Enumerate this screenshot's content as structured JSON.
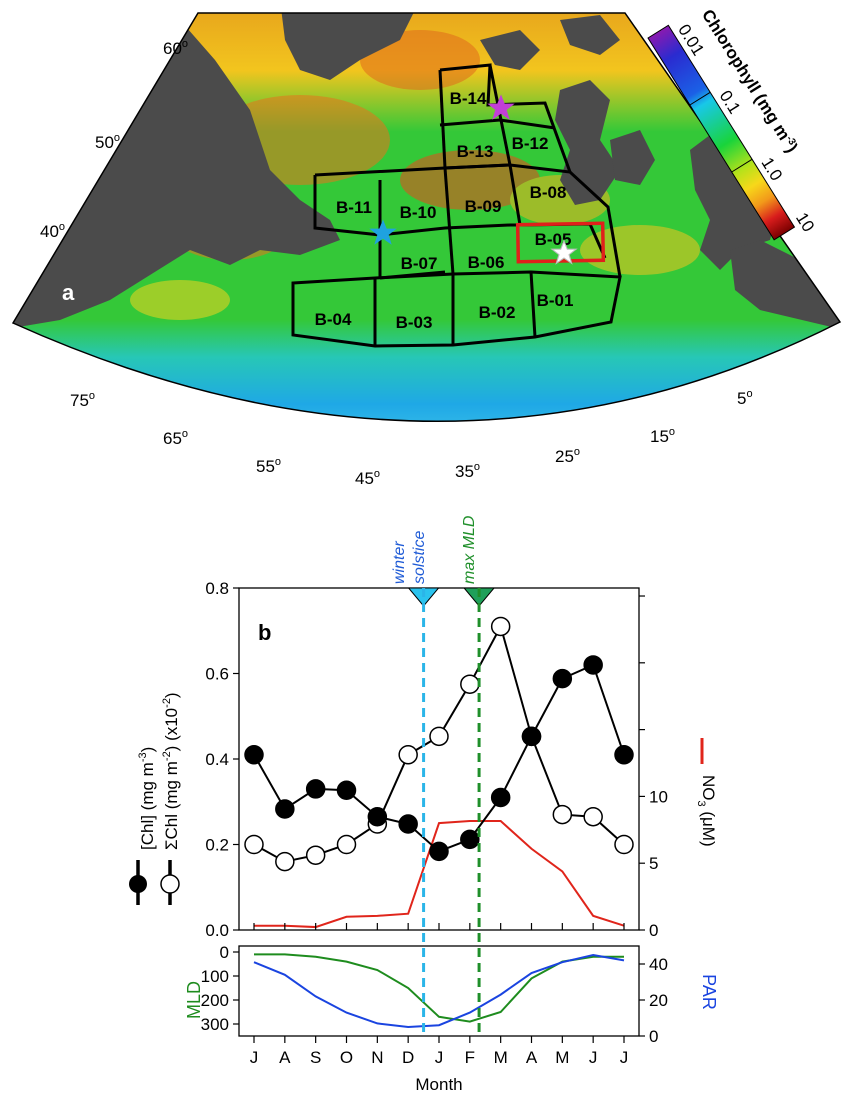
{
  "panel_a": {
    "label": "a",
    "colorbar": {
      "title": "Chlorophyll (mg m",
      "title_exp": "-3",
      "title_close": ")",
      "tick_labels": [
        "0.01",
        "0.1",
        "1.0",
        "10"
      ],
      "scale": "log",
      "colors": [
        "#8a1ab0",
        "#1b36d9",
        "#18c8e8",
        "#19d43b",
        "#f7e81a",
        "#f29a1a",
        "#d81c1c",
        "#7a0000"
      ]
    },
    "lat_labels": [
      {
        "deg": "60",
        "sup": "o"
      },
      {
        "deg": "50",
        "sup": "o"
      },
      {
        "deg": "40",
        "sup": "o"
      }
    ],
    "lon_labels": [
      {
        "deg": "75",
        "sup": "o"
      },
      {
        "deg": "65",
        "sup": "o"
      },
      {
        "deg": "55",
        "sup": "o"
      },
      {
        "deg": "45",
        "sup": "o"
      },
      {
        "deg": "35",
        "sup": "o"
      },
      {
        "deg": "25",
        "sup": "o"
      },
      {
        "deg": "15",
        "sup": "o"
      },
      {
        "deg": "5",
        "sup": "o"
      }
    ],
    "boxes": [
      "B-01",
      "B-02",
      "B-03",
      "B-04",
      "B-05",
      "B-06",
      "B-07",
      "B-08",
      "B-09",
      "B-10",
      "B-11",
      "B-12",
      "B-13",
      "B-14"
    ],
    "highlighted_box": "B-05",
    "markers": [
      {
        "name": "magenta-star",
        "color": "#c23fd6"
      },
      {
        "name": "cyan-star",
        "color": "#1fa2e0"
      },
      {
        "name": "white-star",
        "color": "#ffffff"
      }
    ],
    "colors": {
      "land": "#4b4b4b",
      "box_outline": "#000000",
      "highlight_outline": "#e0201b"
    }
  },
  "chart_data": {
    "type": "line",
    "panel_label": "b",
    "categories": [
      "J",
      "A",
      "S",
      "O",
      "N",
      "D",
      "J",
      "F",
      "M",
      "A",
      "M",
      "J",
      "J"
    ],
    "xlabel": "Month",
    "ylabel_left_line1": "[Chl] (mg m",
    "ylabel_left_line1_exp": "-3",
    "ylabel_left_line2": "ΣChl (mg m",
    "ylabel_left_line2_exp": "-2",
    "ylabel_left_line2_tail": ") (x10",
    "ylabel_left_line2_tail_exp": "-2",
    "ylim_left": [
      0,
      0.8
    ],
    "yticks_left": [
      "0.0",
      "0.2",
      "0.4",
      "0.6",
      "0.8"
    ],
    "ylabel_right": "NO",
    "ylabel_right_sub": "3",
    "ylabel_right_unit": " (μM)",
    "ylim_right": [
      0,
      25.6
    ],
    "yticks_right": [
      "0",
      "5",
      "10"
    ],
    "series": [
      {
        "key": "chl",
        "color": "#000000",
        "marker": "filled-circle",
        "values": [
          0.41,
          0.283,
          0.33,
          0.327,
          0.265,
          0.248,
          0.184,
          0.212,
          0.31,
          0.453,
          0.588,
          0.62,
          0.41
        ]
      },
      {
        "key": "sum_chl",
        "color": "#000000",
        "marker": "open-circle",
        "values": [
          0.2,
          0.16,
          0.175,
          0.2,
          0.248,
          0.41,
          0.453,
          0.575,
          0.71,
          0.453,
          0.27,
          0.265,
          0.2
        ]
      },
      {
        "key": "no3",
        "color": "#e0251b",
        "marker": "none",
        "axis": "right",
        "values": [
          0.32,
          0.32,
          0.22,
          0.99,
          1.06,
          1.22,
          8.0,
          8.16,
          8.16,
          6.08,
          4.38,
          1.06,
          0.32
        ]
      }
    ],
    "markers_top": [
      {
        "label_line1": "winter",
        "label_line2": "solstice",
        "color": "#1f5bd6",
        "line_color": "#2bb5e8",
        "x_month_index": 5.5
      },
      {
        "label_line1": "max MLD",
        "label_line2": "",
        "color": "#1f8f2a",
        "line_color": "#1f8f2a",
        "x_month_index": 7.3
      }
    ],
    "subplot": {
      "ylabel_left": "MLD",
      "ylabel_right": "PAR",
      "ylim_left": [
        0,
        350
      ],
      "yticks_left": [
        "0",
        "100",
        "200",
        "300"
      ],
      "ylim_right": [
        0,
        50
      ],
      "yticks_right": [
        "0",
        "20",
        "40"
      ],
      "series": [
        {
          "key": "mld",
          "color": "#1e8c1e",
          "values": [
            10,
            10,
            20,
            40,
            75,
            150,
            270,
            290,
            250,
            110,
            40,
            20,
            20
          ]
        },
        {
          "key": "par",
          "color": "#1a44e0",
          "values": [
            41,
            34,
            22,
            13,
            7,
            5,
            6,
            13,
            23,
            35,
            41,
            45,
            42
          ]
        }
      ]
    }
  }
}
